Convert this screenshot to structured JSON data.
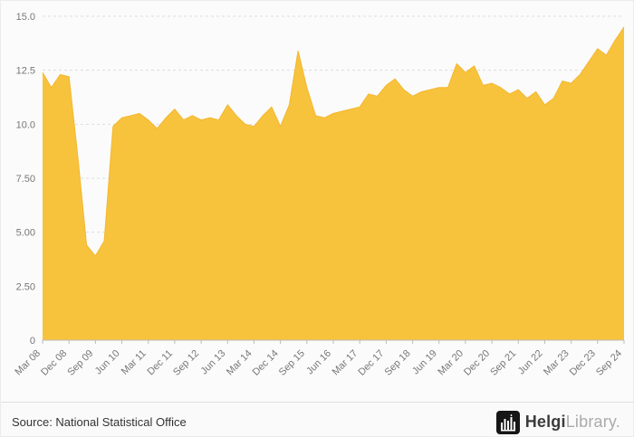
{
  "chart_data": {
    "type": "area",
    "title": "",
    "series_name": "value",
    "categories": [
      "Mar 08",
      "Jun 08",
      "Sep 08",
      "Dec 08",
      "Mar 09",
      "Jun 09",
      "Sep 09",
      "Dec 09",
      "Mar 10",
      "Jun 10",
      "Sep 10",
      "Dec 10",
      "Mar 11",
      "Jun 11",
      "Sep 11",
      "Dec 11",
      "Mar 12",
      "Jun 12",
      "Sep 12",
      "Dec 12",
      "Mar 13",
      "Jun 13",
      "Sep 13",
      "Dec 13",
      "Mar 14",
      "Jun 14",
      "Sep 14",
      "Dec 14",
      "Mar 15",
      "Jun 15",
      "Sep 15",
      "Dec 15",
      "Mar 16",
      "Jun 16",
      "Sep 16",
      "Dec 16",
      "Mar 17",
      "Jun 17",
      "Sep 17",
      "Dec 17",
      "Mar 18",
      "Jun 18",
      "Sep 18",
      "Dec 18",
      "Mar 19",
      "Jun 19",
      "Sep 19",
      "Dec 19",
      "Mar 20",
      "Jun 20",
      "Sep 20",
      "Dec 20",
      "Mar 21",
      "Jun 21",
      "Sep 21",
      "Dec 21",
      "Mar 22",
      "Jun 22",
      "Sep 22",
      "Dec 22",
      "Mar 23",
      "Jun 23",
      "Sep 23",
      "Dec 23",
      "Mar 24",
      "Jun 24",
      "Sep 24"
    ],
    "values": [
      12.4,
      11.7,
      12.3,
      12.2,
      8.5,
      4.4,
      3.9,
      4.6,
      9.9,
      10.3,
      10.4,
      10.5,
      10.2,
      9.8,
      10.3,
      10.7,
      10.2,
      10.4,
      10.2,
      10.3,
      10.2,
      10.9,
      10.4,
      10.0,
      9.9,
      10.4,
      10.8,
      9.9,
      10.9,
      13.4,
      11.7,
      10.4,
      10.3,
      10.5,
      10.6,
      10.7,
      10.8,
      11.4,
      11.3,
      11.8,
      12.1,
      11.6,
      11.3,
      11.5,
      11.6,
      11.7,
      11.7,
      12.8,
      12.4,
      12.7,
      11.8,
      11.9,
      11.7,
      11.4,
      11.6,
      11.2,
      11.5,
      10.9,
      11.2,
      12.0,
      11.9,
      12.3,
      12.9,
      13.5,
      13.2,
      13.9,
      14.5
    ],
    "x_tick_labels": [
      "Mar 08",
      "Dec 08",
      "Sep 09",
      "Jun 10",
      "Mar 11",
      "Dec 11",
      "Sep 12",
      "Jun 13",
      "Mar 14",
      "Dec 14",
      "Sep 15",
      "Jun 16",
      "Mar 17",
      "Dec 17",
      "Sep 18",
      "Jun 19",
      "Mar 20",
      "Dec 20",
      "Sep 21",
      "Jun 22",
      "Mar 23",
      "Dec 23",
      "Sep 24"
    ],
    "x_tick_step": 3,
    "y_ticks": [
      0,
      2.5,
      5,
      7.5,
      10,
      12.5,
      15
    ],
    "y_tick_labels": [
      "0",
      "2.50",
      "5.00",
      "7.50",
      "10.0",
      "12.5",
      "15.0"
    ],
    "ylim": [
      0,
      15
    ],
    "grid": "horizontal-dashed",
    "legend": "none",
    "xlabel": "",
    "ylabel": ""
  },
  "colors": {
    "accent": "#F8C33C",
    "accent_edge": "#F3B62E",
    "grid": "#DDDDDD",
    "axis": "#BBBBBB",
    "tick_text": "#777777",
    "panel_bg": "#FBFBFB",
    "footer_text": "#333333",
    "brand_dark": "#3C3C3C",
    "brand_light": "#ABABAB",
    "logo_bg": "#161616"
  },
  "footer": {
    "source": "Source: National Statistical Office",
    "brand_bold": "Helgi",
    "brand_light": "Library."
  }
}
